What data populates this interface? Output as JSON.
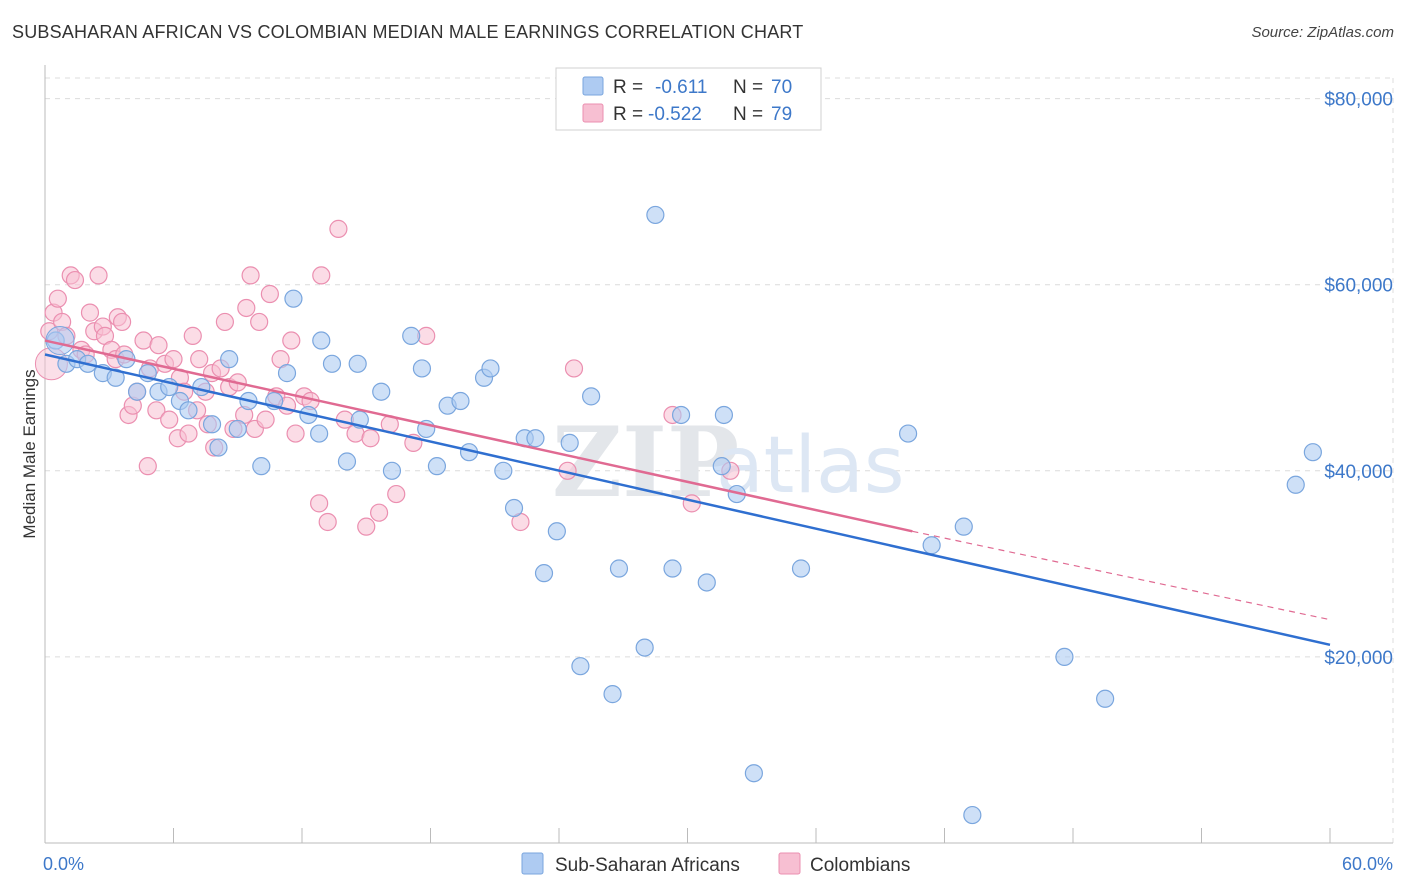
{
  "title": "SUBSAHARAN AFRICAN VS COLOMBIAN MEDIAN MALE EARNINGS CORRELATION CHART",
  "source": "Source: ZipAtlas.com",
  "watermark": {
    "zip": "ZIP",
    "atlas": "atlas"
  },
  "colors": {
    "blue_fill": "#aecbf2",
    "blue_stroke": "#7aa6de",
    "blue_line": "#2f6fd0",
    "pink_fill": "#f7bfd2",
    "pink_stroke": "#eb8fb0",
    "pink_line": "#e06a92",
    "grid": "#dcdcdc",
    "axis_text": "#3d78c9"
  },
  "legend": {
    "rows": [
      {
        "r_label": "R =",
        "r_value": "-0.611",
        "n_label": "N =",
        "n_value": "70"
      },
      {
        "r_label": "R =",
        "r_value": "-0.522",
        "n_label": "N =",
        "n_value": "79"
      }
    ]
  },
  "bottom_legend": {
    "blue": "Sub-Saharan Africans",
    "pink": "Colombians"
  },
  "chart_data": {
    "type": "scatter",
    "title": "SUBSAHARAN AFRICAN VS COLOMBIAN MEDIAN MALE EARNINGS CORRELATION CHART",
    "xlabel": "",
    "ylabel": "Median Male Earnings",
    "xlim": [
      0,
      60
    ],
    "ylim": [
      0,
      82000
    ],
    "x_tick_labels": {
      "min": "0.0%",
      "max": "60.0%"
    },
    "y_ticks": [
      20000,
      40000,
      60000,
      80000
    ],
    "y_tick_labels": [
      "$20,000",
      "$40,000",
      "$60,000",
      "$80,000"
    ],
    "grid": true,
    "series": [
      {
        "name": "Sub-Saharan Africans",
        "r": -0.611,
        "n": 70,
        "trend": {
          "x": [
            0,
            60
          ],
          "y": [
            52500,
            21300
          ],
          "dashed_extension": false
        },
        "points": [
          [
            0.5,
            54000
          ],
          [
            1.0,
            51500
          ],
          [
            1.5,
            52000
          ],
          [
            2.0,
            51500
          ],
          [
            2.7,
            50500
          ],
          [
            3.3,
            50000
          ],
          [
            3.8,
            52000
          ],
          [
            4.3,
            48500
          ],
          [
            4.8,
            50500
          ],
          [
            5.3,
            48500
          ],
          [
            5.8,
            49000
          ],
          [
            6.3,
            47500
          ],
          [
            6.7,
            46500
          ],
          [
            7.3,
            49000
          ],
          [
            7.8,
            45000
          ],
          [
            8.1,
            42500
          ],
          [
            8.6,
            52000
          ],
          [
            9.0,
            44500
          ],
          [
            9.5,
            47500
          ],
          [
            10.1,
            40500
          ],
          [
            10.7,
            47500
          ],
          [
            11.3,
            50500
          ],
          [
            11.6,
            58500
          ],
          [
            12.3,
            46000
          ],
          [
            12.8,
            44000
          ],
          [
            12.9,
            54000
          ],
          [
            13.4,
            51500
          ],
          [
            14.1,
            41000
          ],
          [
            14.6,
            51500
          ],
          [
            14.7,
            45500
          ],
          [
            15.7,
            48500
          ],
          [
            16.2,
            40000
          ],
          [
            17.1,
            54500
          ],
          [
            17.6,
            51000
          ],
          [
            17.8,
            44500
          ],
          [
            18.3,
            40500
          ],
          [
            18.8,
            47000
          ],
          [
            19.4,
            47500
          ],
          [
            19.8,
            42000
          ],
          [
            20.5,
            50000
          ],
          [
            20.8,
            51000
          ],
          [
            21.4,
            40000
          ],
          [
            21.9,
            36000
          ],
          [
            22.4,
            43500
          ],
          [
            22.9,
            43500
          ],
          [
            23.3,
            29000
          ],
          [
            23.9,
            33500
          ],
          [
            24.5,
            43000
          ],
          [
            25.0,
            19000
          ],
          [
            25.5,
            48000
          ],
          [
            26.5,
            16000
          ],
          [
            26.8,
            29500
          ],
          [
            28.0,
            21000
          ],
          [
            28.5,
            67500
          ],
          [
            29.3,
            29500
          ],
          [
            29.7,
            46000
          ],
          [
            30.9,
            28000
          ],
          [
            31.6,
            40500
          ],
          [
            31.7,
            46000
          ],
          [
            32.3,
            37500
          ],
          [
            33.1,
            7500
          ],
          [
            35.3,
            29500
          ],
          [
            40.3,
            44000
          ],
          [
            41.4,
            32000
          ],
          [
            42.9,
            34000
          ],
          [
            43.3,
            3000
          ],
          [
            47.6,
            20000
          ],
          [
            49.5,
            15500
          ],
          [
            58.4,
            38500
          ],
          [
            59.2,
            42000
          ]
        ]
      },
      {
        "name": "Colombians",
        "r": -0.522,
        "n": 79,
        "trend": {
          "x": [
            0,
            40.5
          ],
          "y": [
            54000,
            33500
          ],
          "dashed_extension": true,
          "extension_to": [
            60,
            24000
          ]
        },
        "points": [
          [
            0.2,
            55000
          ],
          [
            0.4,
            57000
          ],
          [
            0.6,
            58500
          ],
          [
            0.8,
            56000
          ],
          [
            1.0,
            54500
          ],
          [
            1.2,
            61000
          ],
          [
            1.4,
            60500
          ],
          [
            1.7,
            53000
          ],
          [
            1.9,
            52500
          ],
          [
            2.1,
            57000
          ],
          [
            2.3,
            55000
          ],
          [
            2.5,
            61000
          ],
          [
            2.7,
            55500
          ],
          [
            2.8,
            54500
          ],
          [
            3.1,
            53000
          ],
          [
            3.3,
            52000
          ],
          [
            3.4,
            56500
          ],
          [
            3.6,
            56000
          ],
          [
            3.7,
            52500
          ],
          [
            3.9,
            46000
          ],
          [
            4.1,
            47000
          ],
          [
            4.3,
            48500
          ],
          [
            4.6,
            54000
          ],
          [
            4.8,
            40500
          ],
          [
            4.9,
            51000
          ],
          [
            5.2,
            46500
          ],
          [
            5.3,
            53500
          ],
          [
            5.6,
            51500
          ],
          [
            5.8,
            45500
          ],
          [
            6.0,
            52000
          ],
          [
            6.2,
            43500
          ],
          [
            6.3,
            50000
          ],
          [
            6.5,
            48500
          ],
          [
            6.7,
            44000
          ],
          [
            6.9,
            54500
          ],
          [
            7.1,
            46500
          ],
          [
            7.2,
            52000
          ],
          [
            7.5,
            48500
          ],
          [
            7.6,
            45000
          ],
          [
            7.8,
            50500
          ],
          [
            7.9,
            42500
          ],
          [
            8.2,
            51000
          ],
          [
            8.4,
            56000
          ],
          [
            8.6,
            49000
          ],
          [
            8.8,
            44500
          ],
          [
            9.0,
            49500
          ],
          [
            9.3,
            46000
          ],
          [
            9.4,
            57500
          ],
          [
            9.6,
            61000
          ],
          [
            9.8,
            44500
          ],
          [
            10.0,
            56000
          ],
          [
            10.3,
            45500
          ],
          [
            10.5,
            59000
          ],
          [
            10.8,
            48000
          ],
          [
            11.0,
            52000
          ],
          [
            11.3,
            47000
          ],
          [
            11.5,
            54000
          ],
          [
            11.7,
            44000
          ],
          [
            12.1,
            48000
          ],
          [
            12.4,
            47500
          ],
          [
            12.8,
            36500
          ],
          [
            12.9,
            61000
          ],
          [
            13.2,
            34500
          ],
          [
            13.7,
            66000
          ],
          [
            14.0,
            45500
          ],
          [
            14.5,
            44000
          ],
          [
            15.0,
            34000
          ],
          [
            15.2,
            43500
          ],
          [
            15.6,
            35500
          ],
          [
            16.1,
            45000
          ],
          [
            16.4,
            37500
          ],
          [
            17.2,
            43000
          ],
          [
            17.8,
            54500
          ],
          [
            24.4,
            40000
          ],
          [
            24.7,
            51000
          ],
          [
            29.3,
            46000
          ],
          [
            30.2,
            36500
          ],
          [
            32.0,
            40000
          ],
          [
            22.2,
            34500
          ]
        ]
      }
    ]
  }
}
